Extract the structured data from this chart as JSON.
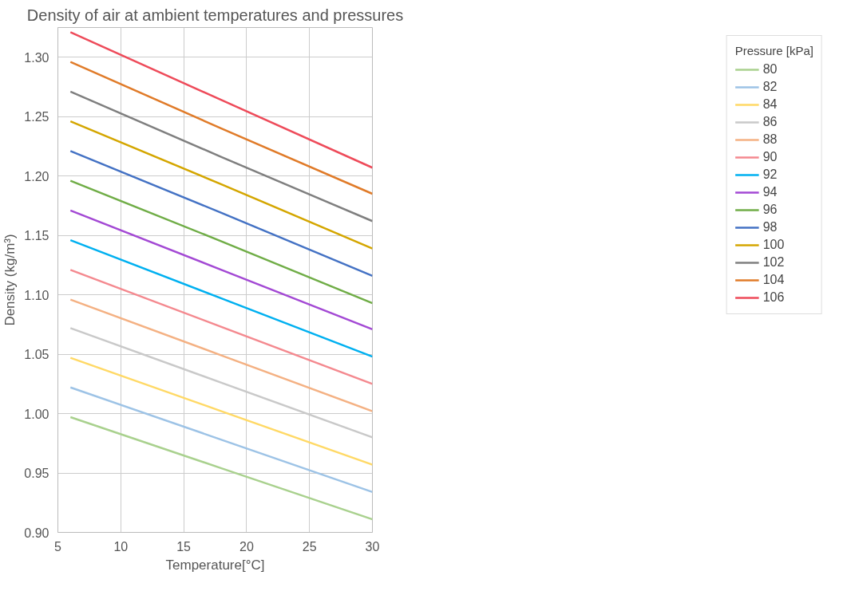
{
  "chart_data": {
    "type": "line",
    "title": "Density of air at ambient temperatures and pressures",
    "xlabel": "Temperature[°C]",
    "ylabel": "Density (kg/m³)",
    "legend_title": "Pressure [kPa]",
    "x": [
      6,
      18,
      30
    ],
    "xlim": [
      5,
      30
    ],
    "xticks": [
      5,
      10,
      15,
      20,
      25,
      30
    ],
    "ylim": [
      0.9,
      1.325
    ],
    "yticks": [
      {
        "value": 0.9,
        "label": "0.90"
      },
      {
        "value": 0.95,
        "label": "0.95"
      },
      {
        "value": 1.0,
        "label": "1.00"
      },
      {
        "value": 1.05,
        "label": "1.05"
      },
      {
        "value": 1.1,
        "label": "1.10"
      },
      {
        "value": 1.15,
        "label": "1.15"
      },
      {
        "value": 1.2,
        "label": "1.20"
      },
      {
        "value": 1.25,
        "label": "1.25"
      },
      {
        "value": 1.3,
        "label": "1.30"
      }
    ],
    "grid": true,
    "legend": "right",
    "marker": "none",
    "line_style": "solid",
    "series": [
      {
        "name": "80",
        "color": "#a9d18e",
        "values": [
          0.997,
          0.954,
          0.911
        ]
      },
      {
        "name": "82",
        "color": "#9dc3e6",
        "values": [
          1.022,
          0.978,
          0.934
        ]
      },
      {
        "name": "84",
        "color": "#ffd966",
        "values": [
          1.047,
          1.002,
          0.957
        ]
      },
      {
        "name": "86",
        "color": "#c9c9c9",
        "values": [
          1.072,
          1.026,
          0.98
        ]
      },
      {
        "name": "88",
        "color": "#f4b183",
        "values": [
          1.096,
          1.049,
          1.002
        ]
      },
      {
        "name": "90",
        "color": "#f4898f",
        "values": [
          1.121,
          1.073,
          1.025
        ]
      },
      {
        "name": "92",
        "color": "#00b0f0",
        "values": [
          1.146,
          1.097,
          1.048
        ]
      },
      {
        "name": "94",
        "color": "#a349d4",
        "values": [
          1.171,
          1.121,
          1.071
        ]
      },
      {
        "name": "96",
        "color": "#70ad47",
        "values": [
          1.196,
          1.145,
          1.093
        ]
      },
      {
        "name": "98",
        "color": "#4472c4",
        "values": [
          1.221,
          1.169,
          1.116
        ]
      },
      {
        "name": "100",
        "color": "#d4a600",
        "values": [
          1.246,
          1.193,
          1.139
        ]
      },
      {
        "name": "102",
        "color": "#7f7f7f",
        "values": [
          1.271,
          1.216,
          1.162
        ]
      },
      {
        "name": "104",
        "color": "#e07b29",
        "values": [
          1.296,
          1.24,
          1.185
        ]
      },
      {
        "name": "106",
        "color": "#ee4b5a",
        "values": [
          1.321,
          1.264,
          1.207
        ]
      }
    ]
  }
}
